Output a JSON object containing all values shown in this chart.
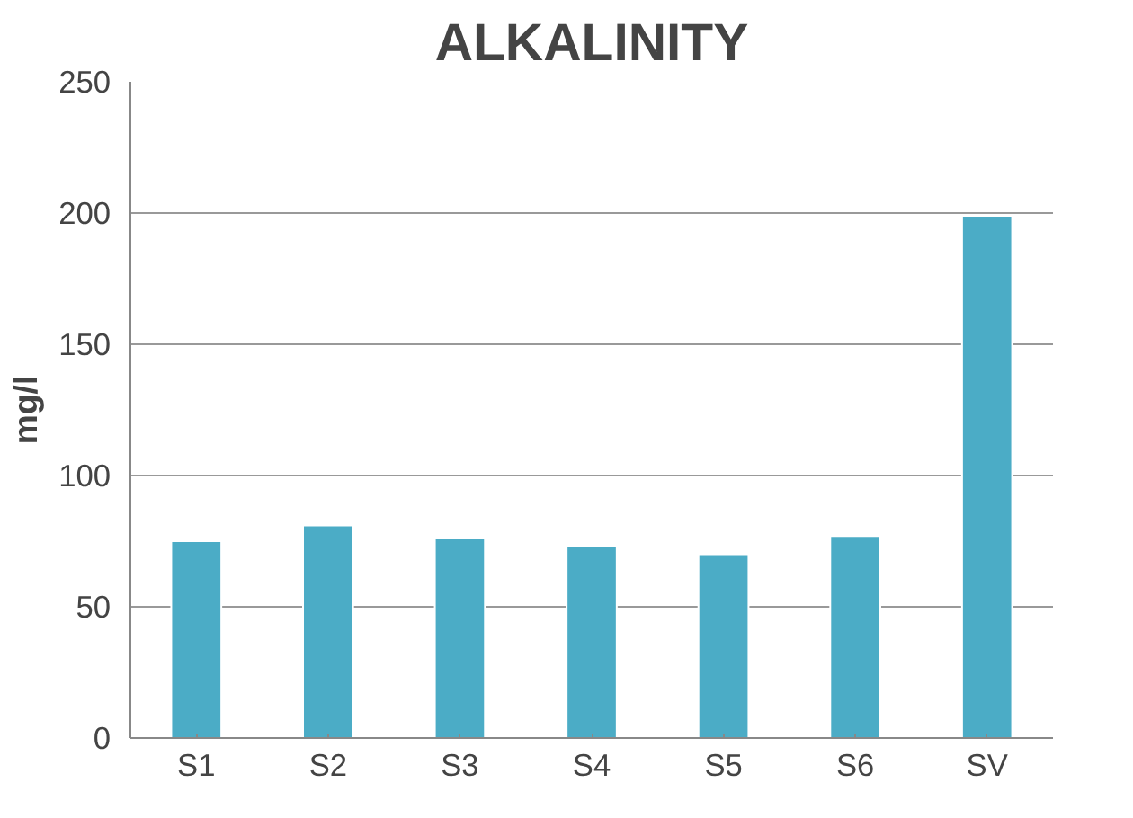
{
  "chart_data": {
    "type": "bar",
    "title": "ALKALINITY",
    "ylabel": "mg/l",
    "categories": [
      "S1",
      "S2",
      "S3",
      "S4",
      "S5",
      "S6",
      "SV"
    ],
    "values": [
      75,
      81,
      76,
      73,
      70,
      77,
      199
    ],
    "color": "#4bacc6",
    "ylim": [
      0,
      250
    ],
    "yticks": [
      0,
      50,
      100,
      150,
      200,
      250
    ],
    "grid": "y"
  }
}
